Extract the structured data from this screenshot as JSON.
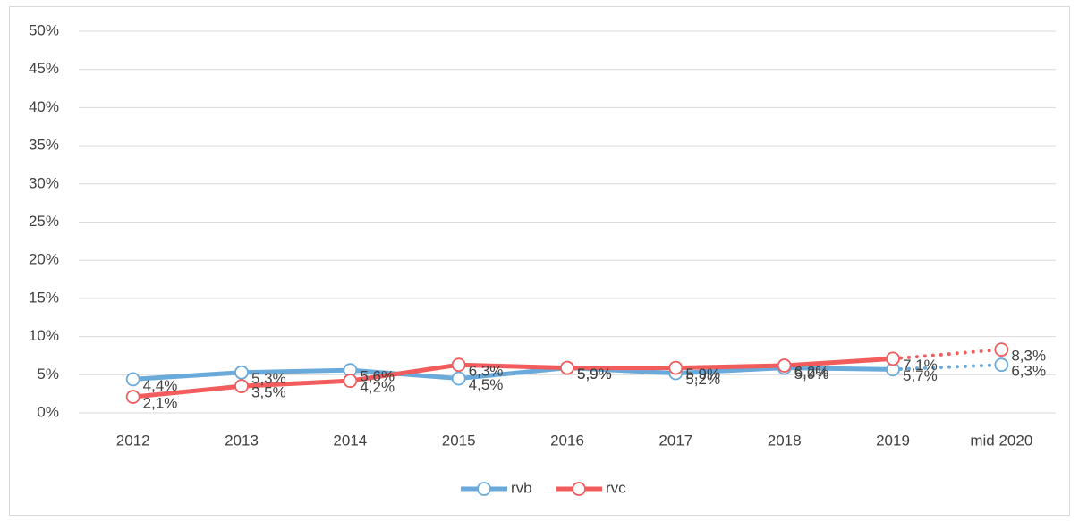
{
  "chart_data": {
    "type": "line",
    "categories": [
      "2012",
      "2013",
      "2014",
      "2015",
      "2016",
      "2017",
      "2018",
      "2019",
      "mid 2020"
    ],
    "series": [
      {
        "name": "rvb",
        "color": "#6aaadb",
        "values": [
          4.4,
          5.3,
          5.6,
          4.5,
          5.9,
          5.2,
          5.9,
          5.7,
          6.3
        ],
        "value_labels": [
          "4,4%",
          "5,3%",
          "5,6%",
          "4,5%",
          "5,9%",
          "5,2%",
          "5,9%",
          "5,7%",
          "6,3%"
        ]
      },
      {
        "name": "rvc",
        "color": "#f25c5c",
        "values": [
          2.1,
          3.5,
          4.2,
          6.3,
          5.9,
          5.9,
          6.2,
          7.1,
          8.3
        ],
        "value_labels": [
          "2,1%",
          "3,5%",
          "4,2%",
          "6,3%",
          "5,9%",
          "5,9%",
          "6,2%",
          "7,1%",
          "8,3%"
        ]
      }
    ],
    "ylim": [
      0,
      50
    ],
    "yticks": [
      {
        "value": 0,
        "label": "0%"
      },
      {
        "value": 5,
        "label": "5%"
      },
      {
        "value": 10,
        "label": "10%"
      },
      {
        "value": 15,
        "label": "15%"
      },
      {
        "value": 20,
        "label": "20%"
      },
      {
        "value": 25,
        "label": "25%"
      },
      {
        "value": 30,
        "label": "30%"
      },
      {
        "value": 35,
        "label": "35%"
      },
      {
        "value": 40,
        "label": "40%"
      },
      {
        "value": 45,
        "label": "45%"
      },
      {
        "value": 50,
        "label": "50%"
      }
    ],
    "grid": true,
    "legend": "bottom",
    "last_segment_style": "dotted"
  }
}
